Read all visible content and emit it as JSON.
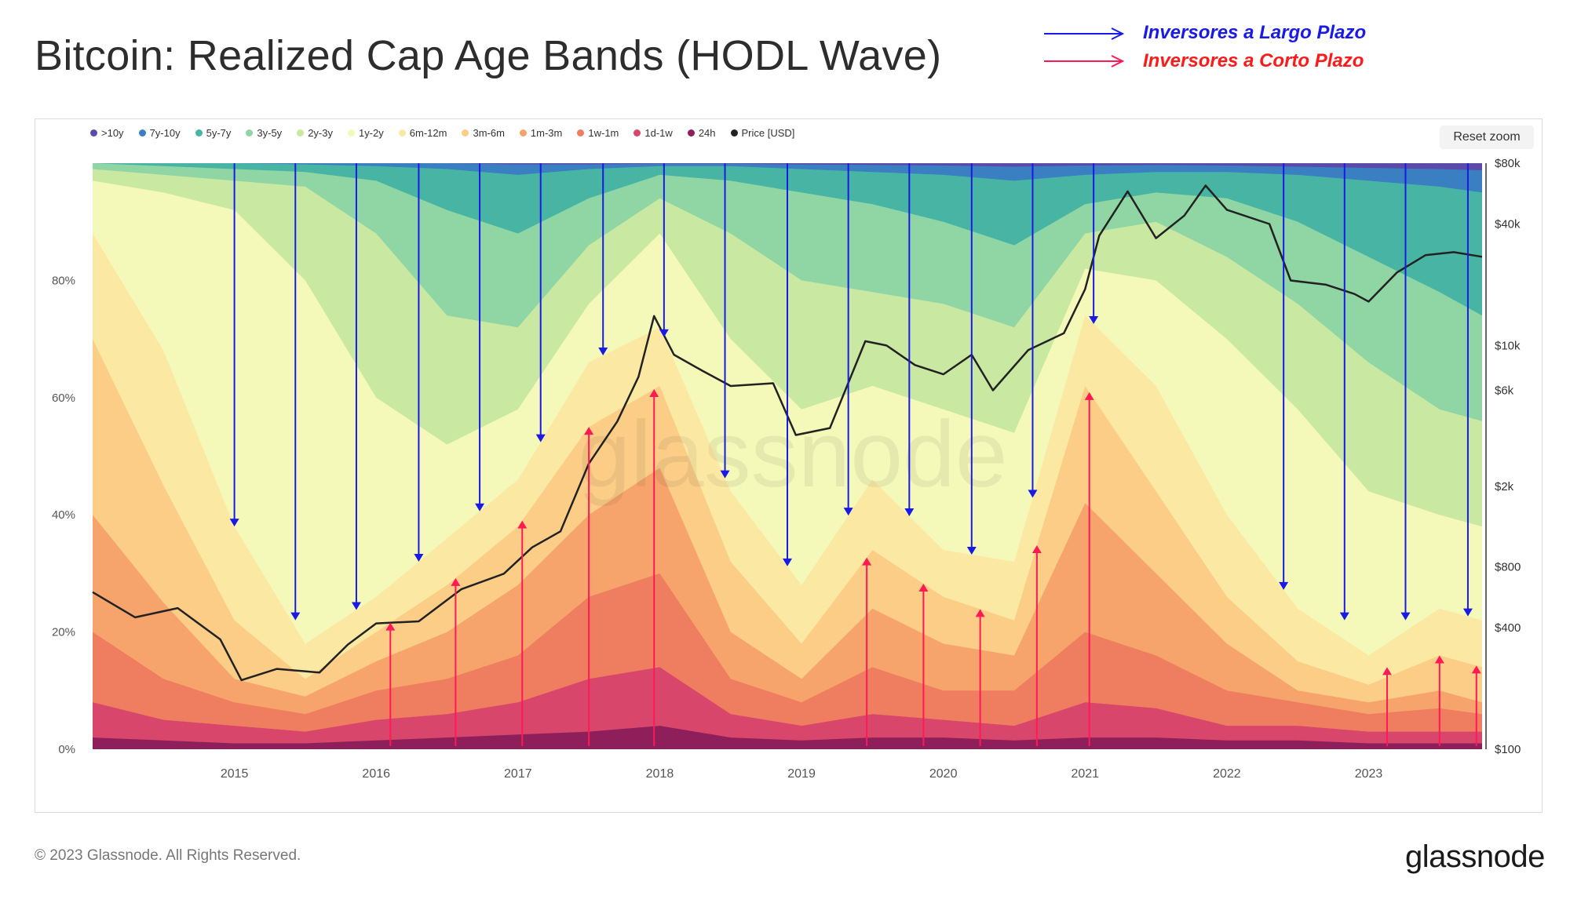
{
  "title": "Bitcoin: Realized Cap Age Bands (HODL Wave)",
  "annotations": {
    "long_term": {
      "label": "Inversores a Largo Plazo",
      "color": "#1a1ae6"
    },
    "short_term": {
      "label": "Inversores a Corto Plazo",
      "color": "#ff1a1a"
    }
  },
  "reset_zoom_label": "Reset zoom",
  "watermark": "glassnode",
  "copyright": "© 2023 Glassnode. All Rights Reserved.",
  "brand": "glassnode",
  "chart_data": {
    "type": "area",
    "stacked": true,
    "x_ticks": [
      "2015",
      "2016",
      "2017",
      "2018",
      "2019",
      "2020",
      "2021",
      "2022",
      "2023"
    ],
    "y_left_ticks": [
      "0%",
      "20%",
      "40%",
      "60%",
      "80%"
    ],
    "y_left_range": [
      0,
      100
    ],
    "y_right_ticks": [
      "$100",
      "$400",
      "$800",
      "$2k",
      "$6k",
      "$10k",
      "$40k",
      "$80k"
    ],
    "y_right_scale": "log",
    "y_right_range": [
      100,
      80000
    ],
    "x_range": [
      2014.0,
      2023.8
    ],
    "legend": [
      {
        "name": ">10y",
        "color": "#5b4aa8"
      },
      {
        "name": "7y-10y",
        "color": "#3a7fc1"
      },
      {
        "name": "5y-7y",
        "color": "#48b5a4"
      },
      {
        "name": "3y-5y",
        "color": "#8fd6a4"
      },
      {
        "name": "2y-3y",
        "color": "#c9e8a1"
      },
      {
        "name": "1y-2y",
        "color": "#f4f8b8"
      },
      {
        "name": "6m-12m",
        "color": "#fbe9a3"
      },
      {
        "name": "3m-6m",
        "color": "#fbcd87"
      },
      {
        "name": "1m-3m",
        "color": "#f6a46c"
      },
      {
        "name": "1w-1m",
        "color": "#ef7d5f"
      },
      {
        "name": "1d-1w",
        "color": "#d9466b"
      },
      {
        "name": "24h",
        "color": "#8e1f5a"
      },
      {
        "name": "Price [USD]",
        "color": "#222222"
      }
    ],
    "x": [
      2014.0,
      2014.5,
      2015.0,
      2015.5,
      2016.0,
      2016.5,
      2017.0,
      2017.5,
      2018.0,
      2018.5,
      2019.0,
      2019.5,
      2020.0,
      2020.5,
      2021.0,
      2021.5,
      2022.0,
      2022.5,
      2023.0,
      2023.5,
      2023.8
    ],
    "series": [
      {
        "name": "24h",
        "values": [
          2,
          1.5,
          1,
          1,
          1.5,
          2,
          2.5,
          3,
          4,
          2,
          1.5,
          2,
          2,
          1.5,
          2,
          2,
          1.5,
          1.5,
          1,
          1,
          1
        ]
      },
      {
        "name": "1d-1w",
        "values": [
          8,
          5,
          4,
          3,
          5,
          6,
          8,
          12,
          14,
          6,
          4,
          6,
          5,
          4,
          8,
          7,
          4,
          4,
          3,
          3,
          3
        ]
      },
      {
        "name": "1w-1m",
        "values": [
          20,
          12,
          8,
          6,
          10,
          12,
          16,
          26,
          30,
          12,
          8,
          14,
          10,
          10,
          20,
          16,
          10,
          8,
          6,
          7,
          6
        ]
      },
      {
        "name": "1m-3m",
        "values": [
          40,
          25,
          12,
          9,
          15,
          20,
          28,
          40,
          48,
          20,
          12,
          24,
          18,
          16,
          42,
          30,
          18,
          10,
          8,
          10,
          8
        ]
      },
      {
        "name": "3m-6m",
        "values": [
          70,
          45,
          22,
          12,
          20,
          28,
          38,
          55,
          62,
          32,
          18,
          34,
          26,
          22,
          62,
          44,
          26,
          15,
          11,
          16,
          14
        ]
      },
      {
        "name": "6m-12m",
        "values": [
          88,
          68,
          38,
          18,
          26,
          36,
          46,
          66,
          72,
          44,
          28,
          46,
          34,
          32,
          74,
          62,
          40,
          24,
          16,
          24,
          22
        ]
      },
      {
        "name": "1y-2y",
        "values": [
          97,
          95,
          92,
          80,
          60,
          52,
          58,
          76,
          88,
          70,
          58,
          62,
          58,
          54,
          82,
          80,
          70,
          58,
          44,
          40,
          38
        ]
      },
      {
        "name": "2y-3y",
        "values": [
          99,
          98,
          97,
          96,
          88,
          74,
          72,
          86,
          94,
          88,
          80,
          78,
          76,
          72,
          88,
          90,
          84,
          76,
          66,
          58,
          56
        ]
      },
      {
        "name": "3y-5y",
        "values": [
          100,
          99.5,
          99,
          98.5,
          97,
          92,
          88,
          94,
          98,
          97,
          95,
          93,
          90,
          86,
          93,
          95,
          94,
          90,
          84,
          78,
          74
        ]
      },
      {
        "name": "5y-7y",
        "values": [
          100,
          100,
          100,
          99.8,
          99.5,
          99,
          98,
          99,
          99.5,
          99.5,
          99,
          98.5,
          98,
          97,
          98,
          98.5,
          98.5,
          98,
          97,
          96,
          95
        ]
      },
      {
        "name": "7y-10y",
        "values": [
          100,
          100,
          100,
          100,
          100,
          100,
          99.8,
          99.8,
          99.9,
          99.9,
          99.8,
          99.7,
          99.6,
          99.4,
          99.6,
          99.7,
          99.6,
          99.4,
          99.2,
          99,
          98.8
        ]
      },
      {
        "name": ">10y",
        "values": [
          100,
          100,
          100,
          100,
          100,
          100,
          100,
          100,
          100,
          100,
          100,
          100,
          100,
          100,
          100,
          100,
          100,
          100,
          100,
          100,
          100
        ]
      }
    ],
    "price_usd": {
      "x": [
        2014.0,
        2014.3,
        2014.6,
        2014.9,
        2015.05,
        2015.3,
        2015.6,
        2015.8,
        2016.0,
        2016.3,
        2016.6,
        2016.9,
        2017.1,
        2017.3,
        2017.5,
        2017.7,
        2017.85,
        2017.96,
        2018.1,
        2018.3,
        2018.5,
        2018.8,
        2018.96,
        2019.2,
        2019.45,
        2019.6,
        2019.8,
        2020.0,
        2020.2,
        2020.35,
        2020.6,
        2020.85,
        2021.0,
        2021.1,
        2021.3,
        2021.5,
        2021.7,
        2021.85,
        2022.0,
        2022.3,
        2022.45,
        2022.7,
        2022.9,
        2023.0,
        2023.2,
        2023.4,
        2023.6,
        2023.8
      ],
      "values": [
        600,
        450,
        500,
        350,
        220,
        250,
        240,
        330,
        420,
        430,
        620,
        740,
        1000,
        1200,
        2600,
        4200,
        7000,
        14000,
        9000,
        7500,
        6300,
        6500,
        3600,
        3900,
        10500,
        10000,
        8000,
        7200,
        9000,
        6000,
        9500,
        11500,
        19000,
        35000,
        58000,
        34000,
        44000,
        62000,
        47000,
        40000,
        21000,
        20000,
        18000,
        16500,
        23000,
        28000,
        29000,
        27500
      ]
    },
    "arrows_long_term_x": [
      2015.0,
      2015.43,
      2015.86,
      2016.3,
      2016.73,
      2017.16,
      2017.6,
      2018.03,
      2018.46,
      2018.9,
      2019.33,
      2019.76,
      2020.2,
      2020.63,
      2021.06,
      2022.4,
      2022.83,
      2023.26,
      2023.7
    ],
    "arrows_short_term_x": [
      2016.1,
      2016.56,
      2017.03,
      2017.5,
      2017.96,
      2019.46,
      2019.86,
      2020.26,
      2020.66,
      2021.03,
      2023.13,
      2023.5,
      2023.76
    ]
  }
}
